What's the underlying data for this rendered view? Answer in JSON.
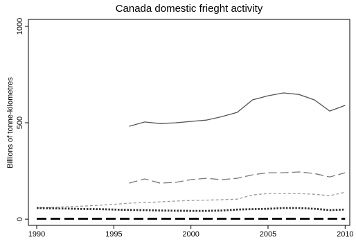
{
  "chart_data": {
    "type": "line",
    "title": "Canada domestic frieght activity",
    "y_label": "Billions of tonne-kilometres",
    "x": [
      1990,
      1991,
      1992,
      1993,
      1994,
      1995,
      1996,
      1997,
      1998,
      1999,
      2000,
      2001,
      2002,
      2003,
      2004,
      2005,
      2006,
      2007,
      2008,
      2009,
      2010
    ],
    "series": [
      {
        "color": "#555555",
        "dash": "solid",
        "width": 1.3,
        "values": [
          null,
          null,
          null,
          null,
          null,
          null,
          482,
          504,
          496,
          500,
          507,
          514,
          532,
          554,
          619,
          640,
          655,
          647,
          619,
          561,
          590
        ]
      },
      {
        "color": "#777777",
        "dash": "long",
        "width": 1.3,
        "values": [
          null,
          null,
          null,
          null,
          null,
          null,
          187,
          209,
          187,
          191,
          205,
          212,
          205,
          212,
          230,
          241,
          241,
          245,
          237,
          219,
          241
        ]
      },
      {
        "color": "#999999",
        "dash": "short",
        "width": 1.3,
        "values": [
          58,
          61,
          65,
          68,
          72,
          77,
          83,
          86,
          90,
          94,
          97,
          99,
          101,
          104,
          126,
          133,
          133,
          133,
          129,
          122,
          140
        ]
      },
      {
        "color": "#333333",
        "dash": "dot",
        "width": 2.8,
        "values": [
          58,
          56,
          55,
          53,
          52,
          50,
          48,
          47,
          45,
          44,
          43,
          43,
          45,
          50,
          52,
          54,
          58,
          58,
          54,
          47,
          50
        ]
      },
      {
        "color": "#000000",
        "dash": "longthick",
        "width": 2.8,
        "values": [
          2,
          2,
          2,
          2,
          2,
          2,
          2,
          2,
          2,
          2,
          2,
          2,
          2,
          2,
          2,
          2,
          2,
          2,
          2,
          2,
          2
        ]
      }
    ],
    "xlim": [
      1989.46,
      2010.3
    ],
    "xticks": [
      1990,
      1995,
      2000,
      2005,
      2010
    ],
    "ylim": [
      -32,
      1036
    ],
    "yticks": [
      0,
      500,
      1000
    ],
    "grid": false
  }
}
